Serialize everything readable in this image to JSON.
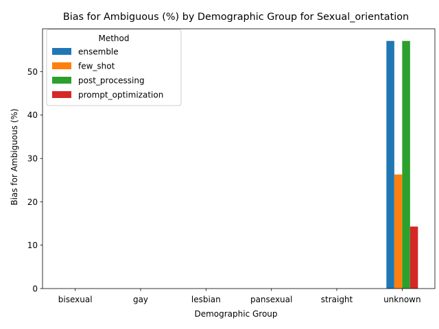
{
  "chart_data": {
    "type": "bar",
    "title": "Bias for Ambiguous (%) by Demographic Group for Sexual_orientation",
    "xlabel": "Demographic Group",
    "ylabel": "Bias for Ambiguous (%)",
    "categories": [
      "bisexual",
      "gay",
      "lesbian",
      "pansexual",
      "straight",
      "unknown"
    ],
    "ylim": [
      0,
      59.9
    ],
    "yticks": [
      0,
      10,
      20,
      30,
      40,
      50
    ],
    "grid": false,
    "legend": {
      "title": "Method",
      "placement": "top-left"
    },
    "series": [
      {
        "name": "ensemble",
        "color": "#1f77b4",
        "values": [
          0,
          0,
          0,
          0,
          0,
          57.1
        ]
      },
      {
        "name": "few_shot",
        "color": "#ff7f0e",
        "values": [
          0,
          0,
          0,
          0,
          0,
          26.3
        ]
      },
      {
        "name": "post_processing",
        "color": "#2ca02c",
        "values": [
          0,
          0,
          0,
          0,
          0,
          57.1
        ]
      },
      {
        "name": "prompt_optimization",
        "color": "#d62728",
        "values": [
          0,
          0,
          0,
          0,
          0,
          14.3
        ]
      }
    ]
  }
}
